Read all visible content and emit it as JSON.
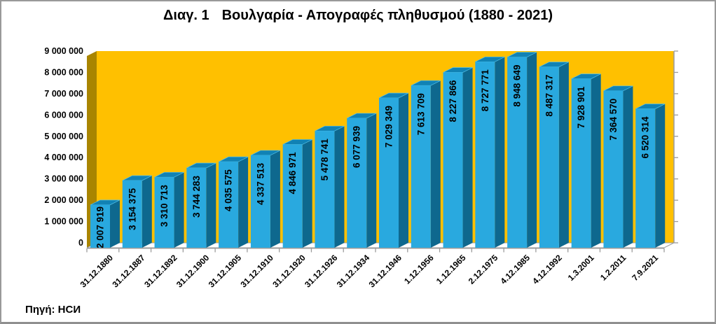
{
  "title": {
    "prefix": "Διαγ. 1",
    "text": "Βουλγαρία - Απογραφές πληθυσμού (1880 - 2021)"
  },
  "source": "Πηγή: НСИ",
  "chart_data": {
    "type": "bar",
    "effect": "3d",
    "title": "Διαγ. 1  Βουλγαρία - Απογραφές πληθυσμού (1880 - 2021)",
    "xlabel": "",
    "ylabel": "",
    "grid": false,
    "legend": false,
    "ylim": [
      0,
      9000000
    ],
    "categories": [
      "31.12.1880",
      "31.12.1887",
      "31.12.1892",
      "31.12.1900",
      "31.12.1905",
      "31.12.1910",
      "31.12.1920",
      "31.12.1926",
      "31.12.1934",
      "31.12.1946",
      "1.12.1956",
      "1.12.1965",
      "2.12.1975",
      "4.12.1985",
      "4.12.1992",
      "1.3.2001",
      "1.2.2011",
      "7.9.2021"
    ],
    "values": [
      2007919,
      3154375,
      3310713,
      3744283,
      4035575,
      4337513,
      4846971,
      5478741,
      6077939,
      7029349,
      7613709,
      8227866,
      8727771,
      8948649,
      8487317,
      7928901,
      7364570,
      6520314
    ],
    "value_labels": [
      "2 007 919",
      "3 154 375",
      "3 310 713",
      "3 744 283",
      "4 035 575",
      "4 337 513",
      "4 846 971",
      "5 478 741",
      "6 077 939",
      "7 029 349",
      "7 613 709",
      "8 227 866",
      "8 727 771",
      "8 948 649",
      "8 487 317",
      "7 928 901",
      "7 364 570",
      "6 520 314"
    ],
    "y_ticks": [
      0,
      1000000,
      2000000,
      3000000,
      4000000,
      5000000,
      6000000,
      7000000,
      8000000,
      9000000
    ],
    "y_tick_labels": [
      "0",
      "1 000 000",
      "2 000 000",
      "3 000 000",
      "4 000 000",
      "5 000 000",
      "6 000 000",
      "7 000 000",
      "8 000 000",
      "9 000 000"
    ],
    "colors": {
      "bar_front": "#29A9DF",
      "bar_top": "#1182B4",
      "bar_top_highlight": "#55C2EA",
      "bar_side": "#0E688E",
      "wall_back": "#FFC000",
      "wall_side": "#A98500",
      "floor": "#FFFFFF",
      "axis_line": "#9B9B9B",
      "text": "#000000"
    }
  }
}
